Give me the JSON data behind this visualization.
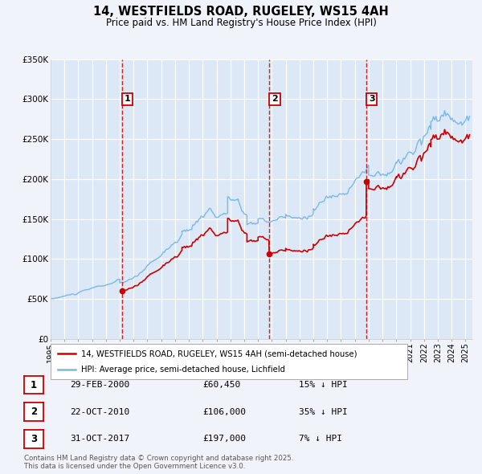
{
  "title": "14, WESTFIELDS ROAD, RUGELEY, WS15 4AH",
  "subtitle": "Price paid vs. HM Land Registry's House Price Index (HPI)",
  "bg_color": "#f0f4fa",
  "plot_bg_color": "#dce8f5",
  "grid_color": "#ffffff",
  "ylim": [
    0,
    350000
  ],
  "yticks": [
    0,
    50000,
    100000,
    150000,
    200000,
    250000,
    300000,
    350000
  ],
  "ytick_labels": [
    "£0",
    "£50K",
    "£100K",
    "£150K",
    "£200K",
    "£250K",
    "£300K",
    "£350K"
  ],
  "xlim_start": 1995.0,
  "xlim_end": 2025.5,
  "sale_color": "#cc0000",
  "hpi_color": "#7ab8e8",
  "sale_label": "14, WESTFIELDS ROAD, RUGELEY, WS15 4AH (semi-detached house)",
  "hpi_label": "HPI: Average price, semi-detached house, Lichfield",
  "vline_color": "#cc0000",
  "sales": [
    {
      "num": 1,
      "date_decimal": 2000.16,
      "price": 60450,
      "label": "29-FEB-2000",
      "pct": "15%",
      "direction": "↓"
    },
    {
      "num": 2,
      "date_decimal": 2010.81,
      "price": 106000,
      "label": "22-OCT-2010",
      "pct": "35%",
      "direction": "↓"
    },
    {
      "num": 3,
      "date_decimal": 2017.83,
      "price": 197000,
      "label": "31-OCT-2017",
      "pct": "7%",
      "direction": "↓"
    }
  ],
  "footer": "Contains HM Land Registry data © Crown copyright and database right 2025.\nThis data is licensed under the Open Government Licence v3.0."
}
